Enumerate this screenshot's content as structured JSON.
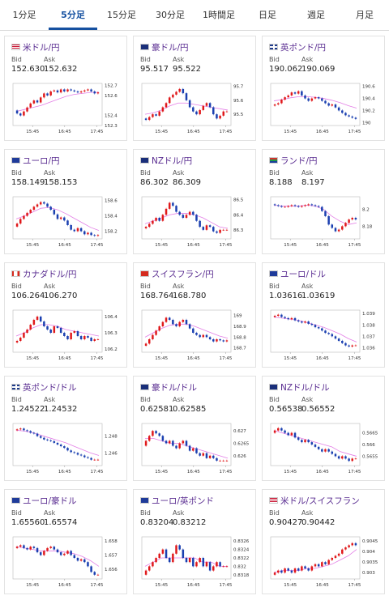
{
  "tabs": [
    {
      "label": "1分足",
      "active": false
    },
    {
      "label": "5分足",
      "active": true
    },
    {
      "label": "15分足",
      "active": false
    },
    {
      "label": "30分足",
      "active": false
    },
    {
      "label": "1時間足",
      "active": false
    },
    {
      "label": "日足",
      "active": false
    },
    {
      "label": "週足",
      "active": false
    },
    {
      "label": "月足",
      "active": false
    }
  ],
  "labels": {
    "bid": "Bid",
    "ask": "Ask"
  },
  "colors": {
    "up": "#e0191b",
    "down": "#1a3fb0",
    "ma": "#e37ee6",
    "tab_active": "#1550a0",
    "pair": "#5a2d91"
  },
  "cards": [
    {
      "pair": "米ドル/円",
      "flag": "us",
      "bid": "152.630",
      "ask": "152.632",
      "chart_data": {
        "type": "candlestick",
        "x_ticks": [
          "15:45",
          "16:45",
          "17:45"
        ],
        "y_ticks": [
          "152.7",
          "152.6",
          "152.4",
          "152.3"
        ],
        "ylim": [
          152.3,
          152.72
        ],
        "closes": [
          152.42,
          152.4,
          152.44,
          152.48,
          152.52,
          152.55,
          152.53,
          152.58,
          152.62,
          152.6,
          152.64,
          152.65,
          152.63,
          152.66,
          152.64,
          152.66,
          152.65,
          152.64,
          152.63,
          152.64,
          152.65,
          152.66,
          152.64,
          152.62,
          152.63
        ],
        "open": 152.45,
        "ma": [
          152.44,
          152.46,
          152.48,
          152.5,
          152.53,
          152.56,
          152.59,
          152.61,
          152.62,
          152.63,
          152.63
        ]
      }
    },
    {
      "pair": "豪ドル/円",
      "flag": "au",
      "bid": "95.517",
      "ask": "95.522",
      "chart_data": {
        "type": "candlestick",
        "x_ticks": [
          "15:45",
          "16:45",
          "17:45"
        ],
        "y_ticks": [
          "95.7",
          "95.6",
          "95.5"
        ],
        "ylim": [
          95.42,
          95.72
        ],
        "closes": [
          95.46,
          95.48,
          95.5,
          95.49,
          95.52,
          95.55,
          95.58,
          95.62,
          95.64,
          95.66,
          95.68,
          95.65,
          95.6,
          95.55,
          95.52,
          95.5,
          95.53,
          95.56,
          95.58,
          95.55,
          95.5,
          95.47,
          95.49,
          95.52,
          95.52
        ],
        "open": 95.47,
        "ma": [
          95.5,
          95.51,
          95.53,
          95.56,
          95.58,
          95.58,
          95.57,
          95.56,
          95.55,
          95.54,
          95.53
        ]
      }
    },
    {
      "pair": "英ポンド/円",
      "flag": "gb",
      "bid": "190.062",
      "ask": "190.069",
      "chart_data": {
        "type": "candlestick",
        "x_ticks": [
          "15:45",
          "16:45",
          "17:45"
        ],
        "y_ticks": [
          "190.6",
          "190.4",
          "190.2",
          "190"
        ],
        "ylim": [
          189.95,
          190.65
        ],
        "closes": [
          190.3,
          190.32,
          190.38,
          190.42,
          190.45,
          190.5,
          190.48,
          190.52,
          190.45,
          190.4,
          190.36,
          190.4,
          190.42,
          190.4,
          190.36,
          190.32,
          190.28,
          190.3,
          190.25,
          190.2,
          190.16,
          190.12,
          190.1,
          190.08,
          190.06
        ],
        "open": 190.28,
        "ma": [
          190.36,
          190.38,
          190.41,
          190.43,
          190.43,
          190.42,
          190.4,
          190.37,
          190.33,
          190.28,
          190.24
        ]
      }
    },
    {
      "pair": "ユーロ/円",
      "flag": "eu",
      "bid": "158.149",
      "ask": "158.153",
      "chart_data": {
        "type": "candlestick",
        "x_ticks": [
          "15:45",
          "16:45",
          "17:45"
        ],
        "y_ticks": [
          "158.6",
          "158.4",
          "158.2"
        ],
        "ylim": [
          158.1,
          158.65
        ],
        "closes": [
          158.3,
          158.36,
          158.4,
          158.44,
          158.48,
          158.52,
          158.55,
          158.58,
          158.56,
          158.52,
          158.48,
          158.42,
          158.36,
          158.38,
          158.34,
          158.28,
          158.22,
          158.2,
          158.24,
          158.2,
          158.16,
          158.18,
          158.15,
          158.14,
          158.15
        ],
        "open": 158.26,
        "ma": [
          158.36,
          158.4,
          158.45,
          158.5,
          158.51,
          158.48,
          158.43,
          158.37,
          158.31,
          158.25,
          158.21
        ]
      }
    },
    {
      "pair": "NZドル/円",
      "flag": "nz",
      "bid": "86.302",
      "ask": "86.309",
      "chart_data": {
        "type": "candlestick",
        "x_ticks": [
          "15:45",
          "16:45",
          "17:45"
        ],
        "y_ticks": [
          "86.5",
          "86.4",
          "86.3"
        ],
        "ylim": [
          86.24,
          86.52
        ],
        "closes": [
          86.32,
          86.34,
          86.36,
          86.38,
          86.36,
          86.4,
          86.44,
          86.48,
          86.46,
          86.42,
          86.4,
          86.38,
          86.4,
          86.42,
          86.4,
          86.36,
          86.32,
          86.3,
          86.33,
          86.32,
          86.29,
          86.28,
          86.3,
          86.3,
          86.3
        ],
        "open": 86.31,
        "ma": [
          86.34,
          86.36,
          86.38,
          86.4,
          86.41,
          86.41,
          86.4,
          86.38,
          86.35,
          86.32,
          86.31
        ]
      }
    },
    {
      "pair": "ランド/円",
      "flag": "za",
      "bid": "8.188",
      "ask": "8.197",
      "chart_data": {
        "type": "candlestick",
        "x_ticks": [
          "15:45",
          "16:45",
          "17:45"
        ],
        "y_ticks": [
          "8.2",
          "8.18"
        ],
        "ylim": [
          8.165,
          8.215
        ],
        "closes": [
          8.205,
          8.204,
          8.203,
          8.203,
          8.204,
          8.205,
          8.204,
          8.203,
          8.204,
          8.205,
          8.206,
          8.205,
          8.204,
          8.203,
          8.198,
          8.192,
          8.182,
          8.178,
          8.174,
          8.176,
          8.18,
          8.184,
          8.188,
          8.19,
          8.188
        ],
        "open": 8.206,
        "ma": [
          8.205,
          8.204,
          8.204,
          8.204,
          8.205,
          8.204,
          8.2,
          8.192,
          8.186,
          8.182,
          8.184
        ]
      }
    },
    {
      "pair": "カナダドル/円",
      "flag": "ca",
      "bid": "106.264",
      "ask": "106.270",
      "chart_data": {
        "type": "candlestick",
        "x_ticks": [
          "15:45",
          "16:45",
          "17:45"
        ],
        "y_ticks": [
          "106.4",
          "106.3",
          "106.2"
        ],
        "ylim": [
          106.18,
          106.44
        ],
        "closes": [
          106.25,
          106.27,
          106.3,
          106.32,
          106.35,
          106.38,
          106.4,
          106.37,
          106.34,
          106.32,
          106.3,
          106.34,
          106.33,
          106.3,
          106.28,
          106.26,
          106.3,
          106.31,
          106.28,
          106.26,
          106.28,
          106.27,
          106.25,
          106.26,
          106.26
        ],
        "open": 106.24,
        "ma": [
          106.28,
          106.3,
          106.33,
          106.35,
          106.35,
          106.34,
          106.32,
          106.31,
          106.3,
          106.29,
          106.28
        ]
      }
    },
    {
      "pair": "スイスフラン/円",
      "flag": "ch",
      "bid": "168.764",
      "ask": "168.780",
      "chart_data": {
        "type": "candlestick",
        "x_ticks": [
          "15:45",
          "16:45",
          "17:45"
        ],
        "y_ticks": [
          "169",
          "168.9",
          "168.8",
          "168.7"
        ],
        "ylim": [
          168.66,
          169.05
        ],
        "closes": [
          168.74,
          168.78,
          168.82,
          168.86,
          168.9,
          168.94,
          168.98,
          168.96,
          168.92,
          168.9,
          168.94,
          168.96,
          168.92,
          168.88,
          168.84,
          168.82,
          168.8,
          168.82,
          168.8,
          168.78,
          168.76,
          168.78,
          168.77,
          168.76,
          168.77
        ],
        "open": 168.72,
        "ma": [
          168.8,
          168.84,
          168.88,
          168.91,
          168.92,
          168.92,
          168.9,
          168.87,
          168.84,
          168.81,
          168.79
        ]
      }
    },
    {
      "pair": "ユーロ/ドル",
      "flag": "eu_us",
      "bid": "1.03616",
      "ask": "1.03619",
      "chart_data": {
        "type": "candlestick",
        "x_ticks": [
          "15:45",
          "16:45",
          "17:45"
        ],
        "y_ticks": [
          "1.039",
          "1.038",
          "1.037",
          "1.036"
        ],
        "ylim": [
          1.0356,
          1.0393
        ],
        "closes": [
          1.0388,
          1.0389,
          1.0387,
          1.0386,
          1.0385,
          1.0386,
          1.0384,
          1.0383,
          1.0382,
          1.0383,
          1.0381,
          1.038,
          1.0378,
          1.0377,
          1.0375,
          1.0373,
          1.0372,
          1.037,
          1.0368,
          1.0366,
          1.0364,
          1.0362,
          1.0361,
          1.0362,
          1.0362
        ],
        "open": 1.0387,
        "ma": [
          1.0387,
          1.0386,
          1.0385,
          1.0384,
          1.0382,
          1.038,
          1.0378,
          1.0375,
          1.0372,
          1.0368,
          1.0365
        ]
      }
    },
    {
      "pair": "英ポンド/ドル",
      "flag": "gb_us",
      "bid": "1.24522",
      "ask": "1.24532",
      "chart_data": {
        "type": "candlestick",
        "x_ticks": [
          "15:45",
          "16:45",
          "17:45"
        ],
        "y_ticks": [
          "1.248",
          "1.246"
        ],
        "ylim": [
          1.2445,
          1.2495
        ],
        "closes": [
          1.2488,
          1.2489,
          1.2487,
          1.2486,
          1.2484,
          1.2483,
          1.248,
          1.2478,
          1.2476,
          1.2475,
          1.2474,
          1.2472,
          1.247,
          1.2468,
          1.2466,
          1.2463,
          1.2461,
          1.246,
          1.2458,
          1.2457,
          1.2455,
          1.2454,
          1.2452,
          1.2452,
          1.2452
        ],
        "open": 1.2487,
        "ma": [
          1.2487,
          1.2486,
          1.2484,
          1.2481,
          1.2478,
          1.2475,
          1.2472,
          1.2468,
          1.2464,
          1.246,
          1.2457
        ]
      }
    },
    {
      "pair": "豪ドル/ドル",
      "flag": "au_us",
      "bid": "0.62581",
      "ask": "0.62585",
      "chart_data": {
        "type": "candlestick",
        "x_ticks": [
          "15:45",
          "16:45",
          "17:45"
        ],
        "y_ticks": [
          "0.627",
          "0.6265",
          "0.626"
        ],
        "ylim": [
          0.6256,
          0.6273
        ],
        "closes": [
          0.6266,
          0.6268,
          0.627,
          0.6269,
          0.6268,
          0.6266,
          0.6265,
          0.6266,
          0.6264,
          0.6263,
          0.6265,
          0.6266,
          0.6264,
          0.6262,
          0.6263,
          0.6261,
          0.626,
          0.6261,
          0.6259,
          0.626,
          0.6259,
          0.6258,
          0.6258,
          0.6258,
          0.6258
        ],
        "open": 0.6264,
        "ma": [
          0.6267,
          0.6267,
          0.6266,
          0.6265,
          0.6265,
          0.6264,
          0.6263,
          0.6262,
          0.6261,
          0.626,
          0.6259
        ]
      }
    },
    {
      "pair": "NZドル/ドル",
      "flag": "nz_us",
      "bid": "0.56538",
      "ask": "0.56552",
      "chart_data": {
        "type": "candlestick",
        "x_ticks": [
          "15:45",
          "16:45",
          "17:45"
        ],
        "y_ticks": [
          "0.5665",
          "0.566",
          "0.5655"
        ],
        "ylim": [
          0.5651,
          0.5669
        ],
        "closes": [
          0.5666,
          0.5667,
          0.5666,
          0.5665,
          0.5664,
          0.5665,
          0.5663,
          0.5662,
          0.5661,
          0.5662,
          0.5661,
          0.566,
          0.5659,
          0.5658,
          0.5657,
          0.5658,
          0.5657,
          0.5656,
          0.5655,
          0.5654,
          0.5655,
          0.5654,
          0.5653,
          0.5654,
          0.5654
        ],
        "open": 0.5665,
        "ma": [
          0.5666,
          0.5665,
          0.5664,
          0.5663,
          0.5662,
          0.5661,
          0.566,
          0.5659,
          0.5657,
          0.5656,
          0.5655
        ]
      }
    },
    {
      "pair": "ユーロ/豪ドル",
      "flag": "eu_au",
      "bid": "1.65560",
      "ask": "1.65574",
      "chart_data": {
        "type": "candlestick",
        "x_ticks": [
          "15:45",
          "16:45",
          "17:45"
        ],
        "y_ticks": [
          "1.658",
          "1.657",
          "1.656"
        ],
        "ylim": [
          1.6553,
          1.6583
        ],
        "closes": [
          1.6576,
          1.6577,
          1.6575,
          1.6574,
          1.6576,
          1.6575,
          1.6572,
          1.657,
          1.6573,
          1.6575,
          1.6576,
          1.6574,
          1.6572,
          1.657,
          1.6571,
          1.6573,
          1.657,
          1.6568,
          1.6566,
          1.6567,
          1.6565,
          1.6562,
          1.6558,
          1.6556,
          1.6556
        ],
        "open": 1.6575,
        "ma": [
          1.6576,
          1.6575,
          1.6574,
          1.6573,
          1.6573,
          1.6573,
          1.6572,
          1.6571,
          1.6569,
          1.6566,
          1.6562
        ]
      }
    },
    {
      "pair": "ユーロ/英ポンド",
      "flag": "eu_gb",
      "bid": "0.83204",
      "ask": "0.83212",
      "chart_data": {
        "type": "candlestick",
        "x_ticks": [
          "15:45",
          "16:45",
          "17:45"
        ],
        "y_ticks": [
          "0.8326",
          "0.8324",
          "0.8322",
          "0.832",
          "0.8318"
        ],
        "ylim": [
          0.8317,
          0.8327
        ],
        "closes": [
          0.8319,
          0.832,
          0.8321,
          0.8322,
          0.8323,
          0.8324,
          0.8322,
          0.8321,
          0.8323,
          0.8325,
          0.8324,
          0.8322,
          0.8321,
          0.8322,
          0.832,
          0.8321,
          0.8322,
          0.832,
          0.8321,
          0.8319,
          0.832,
          0.8321,
          0.832,
          0.832,
          0.832
        ],
        "open": 0.8318,
        "ma": [
          0.832,
          0.8321,
          0.8322,
          0.8322,
          0.8322,
          0.8322,
          0.8322,
          0.8321,
          0.8321,
          0.832,
          0.832
        ]
      }
    },
    {
      "pair": "米ドル/スイスフラン",
      "flag": "us_ch",
      "bid": "0.90427",
      "ask": "0.90442",
      "chart_data": {
        "type": "candlestick",
        "x_ticks": [
          "15:45",
          "16:45",
          "17:45"
        ],
        "y_ticks": [
          "0.9045",
          "0.904",
          "0.9035",
          "0.903"
        ],
        "ylim": [
          0.9027,
          0.9047
        ],
        "closes": [
          0.903,
          0.9031,
          0.903,
          0.9032,
          0.9031,
          0.903,
          0.9032,
          0.9031,
          0.9033,
          0.9032,
          0.9031,
          0.9033,
          0.9034,
          0.9033,
          0.9035,
          0.9034,
          0.9036,
          0.9037,
          0.9038,
          0.9039,
          0.9041,
          0.9042,
          0.9043,
          0.9044,
          0.9043
        ],
        "open": 0.9029,
        "ma": [
          0.903,
          0.9031,
          0.9031,
          0.9031,
          0.9032,
          0.9032,
          0.9033,
          0.9034,
          0.9036,
          0.9038,
          0.9041
        ]
      }
    }
  ]
}
